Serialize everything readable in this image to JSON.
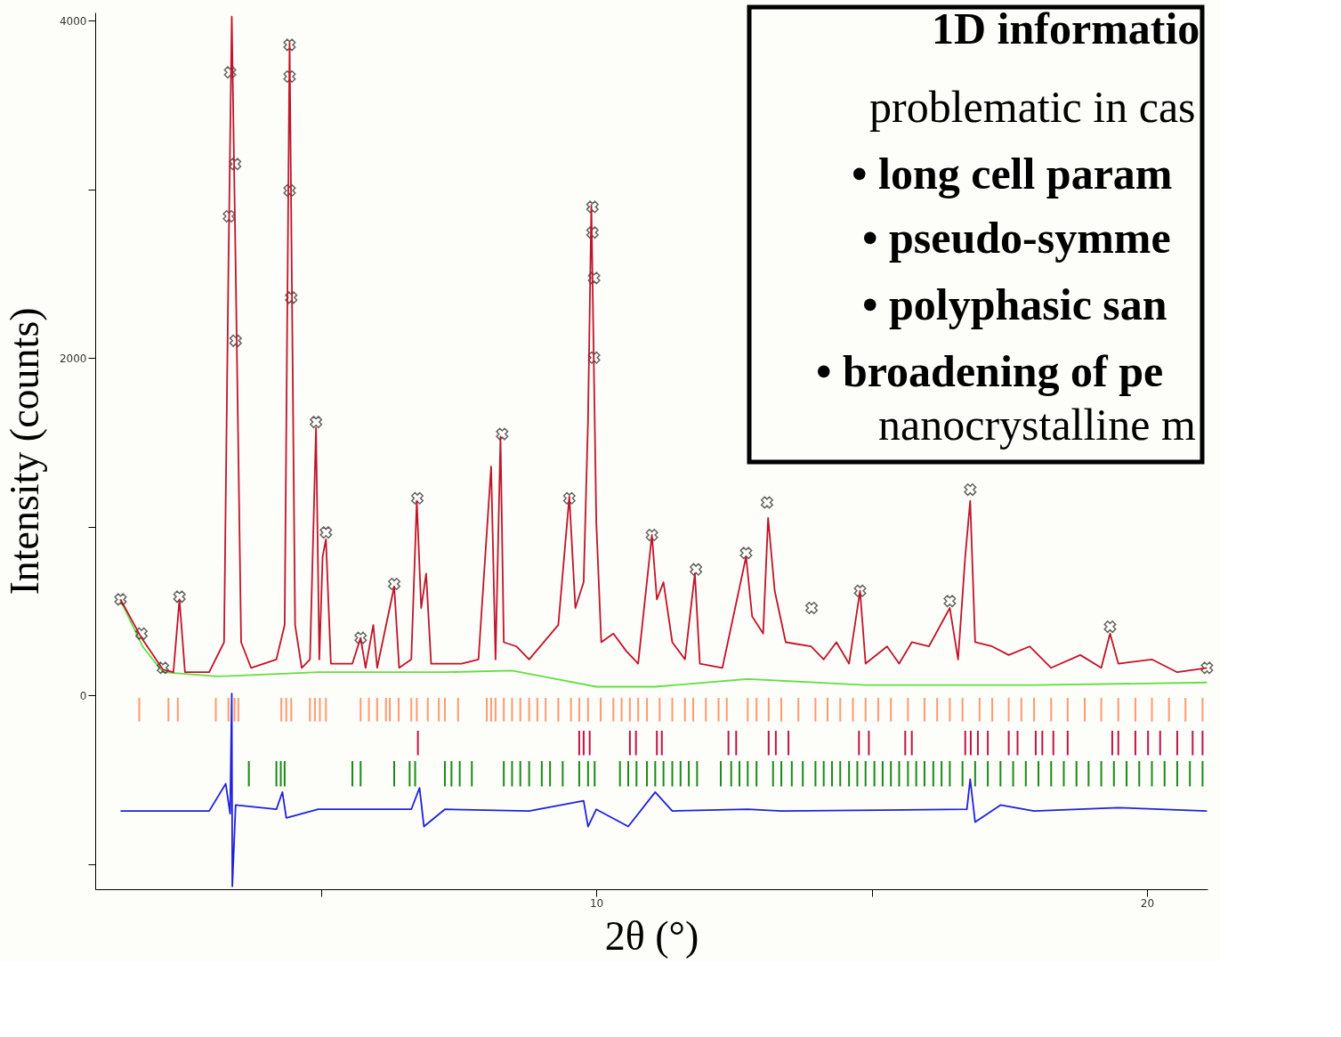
{
  "chart_data": {
    "type": "line",
    "xlabel": "2θ (°)",
    "ylabel": "Intensity (counts)",
    "xlim": [
      0.9,
      21.1
    ],
    "ylim": [
      -1150,
      4050
    ],
    "xticks": [
      {
        "value": 5,
        "label": null
      },
      10,
      {
        "value": 15,
        "label": null
      },
      20
    ],
    "yticks": [
      {
        "value": -1000,
        "label": null
      },
      0,
      {
        "value": 1000,
        "label": null
      },
      2000,
      {
        "value": 3000,
        "label": null
      },
      4000
    ],
    "grid": false,
    "annotations": [
      "1D informatio",
      "problematic in cas",
      "• long cell param",
      "• pseudo-symme",
      "• polyphasic san",
      "• broadening of pe",
      "nanocrystalline m"
    ],
    "series": [
      {
        "type": "bar",
        "color": "#ff9a70",
        "x": [
          1.7,
          2.23,
          2.4,
          3.09,
          3.32,
          3.43,
          3.5,
          4.28,
          4.37,
          4.46,
          4.8,
          4.89,
          4.98,
          5.09,
          5.72,
          5.87,
          6.02,
          6.18,
          6.25,
          6.41,
          6.64,
          6.74,
          6.94,
          7.14,
          7.25,
          7.49,
          8.01,
          8.09,
          8.17,
          8.32,
          8.47,
          8.62,
          8.78,
          8.93,
          9.08,
          9.31,
          9.54,
          9.69,
          9.85,
          10.08,
          10.31,
          10.46,
          10.61,
          10.76,
          10.92,
          11.15,
          11.38,
          11.61,
          11.76,
          11.99,
          12.22,
          12.37,
          12.75,
          12.91,
          13.13,
          13.36,
          13.67,
          13.98,
          14.2,
          14.43,
          14.66,
          14.89,
          15.12,
          15.35,
          15.66,
          15.96,
          16.19,
          16.42,
          16.65,
          16.96,
          17.19,
          17.49,
          17.72,
          17.95,
          18.26,
          18.56,
          18.87,
          19.17,
          19.48,
          19.79,
          20.09,
          20.4,
          20.7,
          21.01
        ],
        "values": [
          140,
          140,
          140,
          140,
          140,
          140,
          140,
          140,
          140,
          140,
          140,
          140,
          140,
          140,
          140,
          140,
          140,
          140,
          140,
          140,
          140,
          140,
          140,
          140,
          140,
          140,
          140,
          140,
          140,
          140,
          140,
          140,
          140,
          140,
          140,
          140,
          140,
          140,
          140,
          140,
          140,
          140,
          140,
          140,
          140,
          140,
          140,
          140,
          140,
          140,
          140,
          140,
          140,
          140,
          140,
          140,
          140,
          140,
          140,
          140,
          140,
          140,
          140,
          140,
          140,
          140,
          140,
          140,
          140,
          140,
          140,
          140,
          140,
          140,
          140,
          140,
          140,
          140,
          140,
          140,
          140,
          140,
          140,
          140
        ],
        "base": [
          -155,
          -155,
          -155,
          -155,
          -155,
          -155,
          -155,
          -155,
          -155,
          -155,
          -155,
          -155,
          -155,
          -155,
          -155,
          -155,
          -155,
          -155,
          -155,
          -155,
          -155,
          -155,
          -155,
          -155,
          -155,
          -155,
          -155,
          -155,
          -155,
          -155,
          -155,
          -155,
          -155,
          -155,
          -155,
          -155,
          -155,
          -155,
          -155,
          -155,
          -155,
          -155,
          -155,
          -155,
          -155,
          -155,
          -155,
          -155,
          -155,
          -155,
          -155,
          -155,
          -155,
          -155,
          -155,
          -155,
          -155,
          -155,
          -155,
          -155,
          -155,
          -155,
          -155,
          -155,
          -155,
          -155,
          -155,
          -155,
          -155,
          -155,
          -155,
          -155,
          -155,
          -155,
          -155,
          -155,
          -155,
          -155,
          -155,
          -155,
          -155,
          -155,
          -155,
          -155
        ]
      },
      {
        "type": "bar",
        "color": "#c0144a",
        "x": [
          6.76,
          9.69,
          9.77,
          9.88,
          10.61,
          10.72,
          11.1,
          11.19,
          12.4,
          12.54,
          13.13,
          13.26,
          13.49,
          14.77,
          14.95,
          15.61,
          15.73,
          16.7,
          16.8,
          16.93,
          17.11,
          17.49,
          17.65,
          17.98,
          18.1,
          18.3,
          18.56,
          19.37,
          19.48,
          19.79,
          20.02,
          20.24,
          20.55,
          20.83,
          21.01
        ],
        "values": [
          145,
          145,
          145,
          145,
          145,
          145,
          145,
          145,
          145,
          145,
          145,
          145,
          145,
          145,
          145,
          145,
          145,
          145,
          145,
          145,
          145,
          145,
          145,
          145,
          145,
          145,
          145,
          145,
          145,
          145,
          145,
          145,
          145,
          145,
          145
        ],
        "base": [
          -355,
          -355,
          -355,
          -355,
          -355,
          -355,
          -355,
          -355,
          -355,
          -355,
          -355,
          -355,
          -355,
          -355,
          -355,
          -355,
          -355,
          -355,
          -355,
          -355,
          -355,
          -355,
          -355,
          -355,
          -355,
          -355,
          -355,
          -355,
          -355,
          -355,
          -355,
          -355,
          -355,
          -355,
          -355
        ]
      },
      {
        "type": "bar",
        "color": "#1a8a1a",
        "x": [
          3.69,
          4.19,
          4.27,
          4.34,
          5.57,
          5.72,
          6.33,
          6.61,
          6.71,
          7.25,
          7.37,
          7.52,
          7.74,
          8.32,
          8.47,
          8.62,
          8.78,
          9.01,
          9.16,
          9.39,
          9.69,
          9.85,
          9.97,
          10.43,
          10.58,
          10.73,
          10.92,
          11.07,
          11.22,
          11.38,
          11.53,
          11.68,
          11.83,
          12.26,
          12.45,
          12.6,
          12.75,
          12.91,
          13.21,
          13.36,
          13.55,
          13.75,
          13.98,
          14.13,
          14.28,
          14.43,
          14.59,
          14.74,
          14.89,
          15.05,
          15.2,
          15.35,
          15.5,
          15.66,
          15.81,
          15.96,
          16.12,
          16.27,
          16.42,
          16.65,
          16.88,
          17.11,
          17.34,
          17.57,
          17.8,
          18.03,
          18.26,
          18.49,
          18.72,
          18.94,
          19.17,
          19.4,
          19.63,
          19.86,
          20.09,
          20.32,
          20.55,
          20.78,
          21.01
        ],
        "values": [
          150,
          150,
          150,
          150,
          150,
          150,
          150,
          150,
          150,
          150,
          150,
          150,
          150,
          150,
          150,
          150,
          150,
          150,
          150,
          150,
          150,
          150,
          150,
          150,
          150,
          150,
          150,
          150,
          150,
          150,
          150,
          150,
          150,
          150,
          150,
          150,
          150,
          150,
          150,
          150,
          150,
          150,
          150,
          150,
          150,
          150,
          150,
          150,
          150,
          150,
          150,
          150,
          150,
          150,
          150,
          150,
          150,
          150,
          150,
          150,
          150,
          150,
          150,
          150,
          150,
          150,
          150,
          150,
          150,
          150,
          150,
          150,
          150,
          150,
          150,
          150,
          150,
          150,
          150
        ],
        "base": [
          -540,
          -540,
          -540,
          -540,
          -540,
          -540,
          -540,
          -540,
          -540,
          -540,
          -540,
          -540,
          -540,
          -540,
          -540,
          -540,
          -540,
          -540,
          -540,
          -540,
          -540,
          -540,
          -540,
          -540,
          -540,
          -540,
          -540,
          -540,
          -540,
          -540,
          -540,
          -540,
          -540,
          -540,
          -540,
          -540,
          -540,
          -540,
          -540,
          -540,
          -540,
          -540,
          -540,
          -540,
          -540,
          -540,
          -540,
          -540,
          -540,
          -540,
          -540,
          -540,
          -540,
          -540,
          -540,
          -540,
          -540,
          -540,
          -540,
          -540,
          -540,
          -540,
          -540,
          -540,
          -540,
          -540,
          -540,
          -540,
          -540,
          -540,
          -540,
          -540,
          -540,
          -540,
          -540,
          -540,
          -540,
          -540,
          -540
        ]
      },
      {
        "color": "#2020dd",
        "x": [
          1.36,
          2.97,
          3.27,
          3.35,
          3.38,
          3.39,
          3.45,
          4.19,
          4.3,
          4.37,
          4.95,
          6.64,
          6.79,
          6.87,
          7.25,
          8.78,
          9.77,
          9.85,
          10.0,
          10.58,
          11.07,
          11.38,
          12.75,
          13.36,
          16.73,
          16.79,
          16.88,
          17.34,
          17.95,
          19.48,
          21.09
        ],
        "values": [
          -686,
          -686,
          -524,
          -702,
          10,
          -1133,
          -651,
          -676,
          -574,
          -727,
          -676,
          -676,
          -549,
          -778,
          -676,
          -686,
          -625,
          -778,
          -676,
          -778,
          -574,
          -686,
          -676,
          -686,
          -676,
          -498,
          -752,
          -651,
          -686,
          -666,
          -686
        ]
      },
      {
        "color": "#66dd44",
        "x": [
          1.35,
          1.76,
          2.13,
          3.12,
          4.95,
          7.25,
          8.47,
          10.0,
          11.07,
          12.75,
          14.89,
          17.95,
          21.09
        ],
        "values": [
          569,
          290,
          137,
          112,
          137,
          137,
          147,
          51,
          51,
          97,
          61,
          61,
          76
        ]
      },
      {
        "type": "scatter",
        "marker": "cross",
        "color": "#222222",
        "x": [
          1.36,
          1.74,
          2.13,
          2.43,
          3.33,
          3.35,
          3.44,
          3.45,
          4.43,
          4.43,
          4.43,
          4.46,
          4.91,
          5.09,
          5.72,
          6.33,
          6.75,
          8.29,
          9.51,
          9.93,
          9.93,
          9.96,
          9.96,
          11.01,
          11.81,
          12.72,
          13.1,
          13.91,
          14.79,
          16.42,
          16.79,
          19.33,
          21.09
        ],
        "values": [
          569,
          366,
          163,
          585,
          2841,
          3695,
          3151,
          2103,
          3858,
          3670,
          2994,
          2359,
          1621,
          966,
          341,
          661,
          1169,
          1550,
          1169,
          2897,
          2745,
          2475,
          2003,
          951,
          747,
          844,
          1144,
          518,
          620,
          559,
          1220,
          407,
          163
        ]
      },
      {
        "color": "#c0142a",
        "x": [
          1.36,
          1.74,
          2.13,
          2.32,
          2.43,
          2.53,
          2.97,
          3.24,
          3.32,
          3.38,
          3.45,
          3.55,
          3.73,
          4.19,
          4.34,
          4.43,
          4.53,
          4.65,
          4.8,
          4.91,
          4.97,
          5.03,
          5.09,
          5.18,
          5.57,
          5.72,
          5.81,
          5.95,
          6.02,
          6.33,
          6.42,
          6.64,
          6.74,
          6.82,
          6.91,
          7.0,
          7.55,
          7.86,
          8.09,
          8.17,
          8.26,
          8.32,
          8.55,
          8.78,
          9.31,
          9.51,
          9.62,
          9.77,
          9.85,
          9.91,
          10.0,
          10.09,
          10.31,
          10.54,
          10.76,
          11.01,
          11.1,
          11.22,
          11.38,
          11.61,
          11.79,
          11.88,
          12.29,
          12.72,
          12.83,
          13.03,
          13.12,
          13.24,
          13.44,
          13.9,
          14.13,
          14.36,
          14.59,
          14.79,
          14.89,
          15.28,
          15.5,
          15.73,
          16.04,
          16.42,
          16.57,
          16.7,
          16.79,
          16.88,
          17.19,
          17.49,
          17.87,
          18.26,
          18.79,
          19.17,
          19.33,
          19.48,
          20.09,
          20.55,
          21.09
        ],
        "values": [
          569,
          341,
          152,
          137,
          569,
          137,
          137,
          315,
          2552,
          4026,
          2552,
          315,
          163,
          213,
          417,
          3873,
          417,
          163,
          213,
          1586,
          213,
          823,
          925,
          188,
          188,
          341,
          163,
          417,
          163,
          646,
          163,
          213,
          1154,
          518,
          722,
          188,
          188,
          213,
          1357,
          213,
          1535,
          315,
          290,
          213,
          417,
          1179,
          518,
          671,
          1637,
          2908,
          1027,
          315,
          366,
          264,
          188,
          951,
          569,
          671,
          315,
          213,
          722,
          188,
          163,
          823,
          468,
          366,
          1052,
          620,
          315,
          290,
          213,
          315,
          188,
          620,
          188,
          290,
          188,
          315,
          290,
          518,
          213,
          823,
          1154,
          315,
          290,
          239,
          290,
          163,
          239,
          163,
          366,
          188,
          213,
          137,
          163
        ]
      }
    ]
  }
}
